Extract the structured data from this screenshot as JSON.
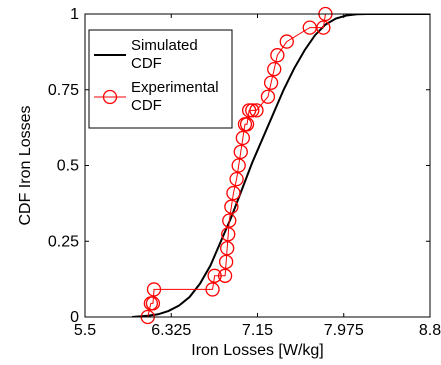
{
  "chart_data": {
    "type": "line",
    "xlabel": "Iron Losses [W/kg]",
    "ylabel": "CDF Iron Losses",
    "xlim": [
      5.5,
      8.8
    ],
    "ylim": [
      0,
      1
    ],
    "xticks": [
      5.5,
      6.325,
      7.15,
      7.975,
      8.8
    ],
    "xtick_labels": [
      "5.5",
      "6.325",
      "7.15",
      "7.975",
      "8.8"
    ],
    "yticks": [
      0,
      0.25,
      0.5,
      0.75,
      1
    ],
    "ytick_labels": [
      "0",
      "0.25",
      "0.5",
      "0.75",
      "1"
    ],
    "grid": false,
    "legend": {
      "position": "top-left",
      "entries": [
        {
          "line1": "Simulated",
          "line2": "CDF",
          "color": "#000000",
          "marker": "none"
        },
        {
          "line1": "Experimental",
          "line2": "CDF",
          "color": "#ff0000",
          "marker": "circle"
        }
      ]
    },
    "series": [
      {
        "name": "Simulated CDF",
        "style": "line",
        "color": "#000000",
        "x": [
          5.95,
          6.1,
          6.2,
          6.3,
          6.4,
          6.5,
          6.6,
          6.7,
          6.8,
          6.9,
          7.0,
          7.1,
          7.2,
          7.3,
          7.4,
          7.5,
          7.6,
          7.7,
          7.8,
          7.9,
          8.0,
          8.1,
          8.2,
          8.8
        ],
        "y": [
          0.0,
          0.004,
          0.009,
          0.02,
          0.038,
          0.066,
          0.11,
          0.17,
          0.25,
          0.33,
          0.42,
          0.51,
          0.59,
          0.67,
          0.75,
          0.82,
          0.88,
          0.93,
          0.965,
          0.985,
          0.995,
          0.999,
          1.0,
          1.0
        ]
      },
      {
        "name": "Experimental CDF",
        "style": "stairs-markers",
        "color": "#ff0000",
        "x": [
          6.1,
          6.13,
          6.15,
          6.16,
          6.72,
          6.74,
          6.84,
          6.85,
          6.86,
          6.87,
          6.88,
          6.9,
          6.92,
          6.95,
          6.97,
          6.99,
          7.01,
          7.03,
          7.05,
          7.07,
          7.1,
          7.14,
          7.25,
          7.28,
          7.31,
          7.34,
          7.43,
          7.65,
          7.78,
          7.8
        ],
        "y": [
          0.0,
          0.045,
          0.045,
          0.091,
          0.091,
          0.136,
          0.136,
          0.182,
          0.227,
          0.273,
          0.318,
          0.364,
          0.409,
          0.455,
          0.5,
          0.545,
          0.591,
          0.636,
          0.636,
          0.682,
          0.682,
          0.682,
          0.727,
          0.773,
          0.818,
          0.864,
          0.909,
          0.955,
          0.955,
          1.0
        ]
      }
    ]
  }
}
